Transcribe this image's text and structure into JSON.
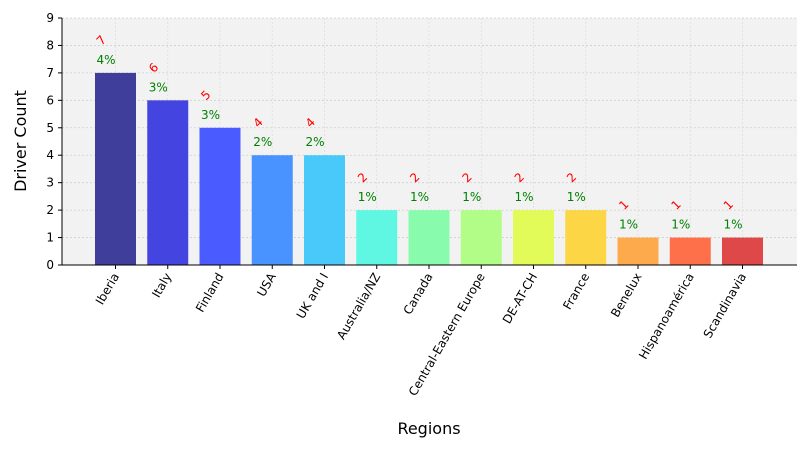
{
  "chart_data": {
    "type": "bar",
    "xlabel": "Regions",
    "ylabel": "Driver Count",
    "ylim": [
      0,
      9
    ],
    "yticks": [
      "0",
      "1",
      "2",
      "3",
      "4",
      "5",
      "6",
      "7",
      "8",
      "9"
    ],
    "grid": true,
    "categories": [
      "Iberia",
      "Italy",
      "Finland",
      "USA",
      "UK and I",
      "Australia/NZ",
      "Canada",
      "Central-Eastern Europe",
      "DE-AT-CH",
      "France",
      "Benelux",
      "Hispanoamérica",
      "Scandinavia"
    ],
    "values": [
      7,
      6,
      5,
      4,
      4,
      2,
      2,
      2,
      2,
      2,
      1,
      1,
      1
    ],
    "count_labels": [
      "7",
      "6",
      "5",
      "4",
      "4",
      "2",
      "2",
      "2",
      "2",
      "2",
      "1",
      "1",
      "1"
    ],
    "percent_labels": [
      "4%",
      "3%",
      "3%",
      "2%",
      "2%",
      "1%",
      "1%",
      "1%",
      "1%",
      "1%",
      "1%",
      "1%",
      "1%"
    ],
    "colors": [
      "#3f3f9b",
      "#4444e0",
      "#4a5cff",
      "#4893ff",
      "#49c9fa",
      "#5ff6e2",
      "#89fbad",
      "#b1fd88",
      "#e2fb58",
      "#fdd646",
      "#fcaa4c",
      "#fd7049",
      "#de4848"
    ]
  }
}
